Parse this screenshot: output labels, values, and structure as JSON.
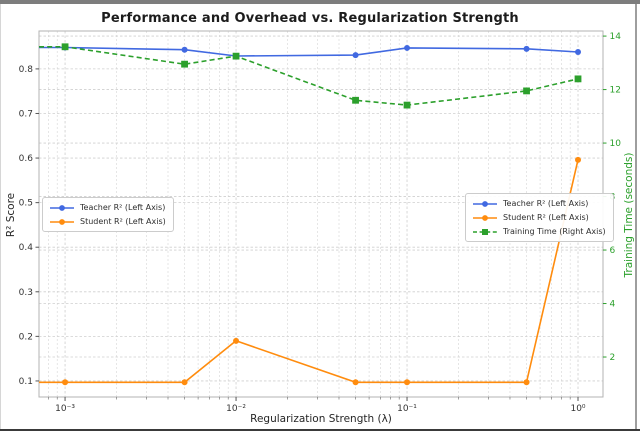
{
  "window": {
    "top_bar_color": "#7d7d7d",
    "side_border_color": "#9e9e9e",
    "bottom_border_color": "#3a3a3a"
  },
  "chart_data": {
    "type": "line",
    "title": "Performance and Overhead vs. Regularization Strength",
    "xlabel": "Regularization Strength (λ)",
    "ylabel_left": "R² Score",
    "ylabel_right": "Training Time (seconds)",
    "x_scale": "log",
    "grid": true,
    "xlim": [
      0.000704,
      1.4
    ],
    "ylim_left": [
      0.064,
      0.885
    ],
    "ylim_right": [
      0.505,
      14.19
    ],
    "x": [
      0.001,
      0.005,
      0.01,
      0.05,
      0.1,
      0.5,
      1.0
    ],
    "x_ticks": [
      {
        "value": 0.001,
        "label": "10⁻³"
      },
      {
        "value": 0.01,
        "label": "10⁻²"
      },
      {
        "value": 0.1,
        "label": "10⁻¹"
      },
      {
        "value": 1.0,
        "label": "10⁰"
      }
    ],
    "left_ticks": {
      "values": [
        0.1,
        0.2,
        0.3,
        0.4,
        0.5,
        0.6,
        0.7,
        0.8
      ],
      "labels": [
        "0.1",
        "0.2",
        "0.3",
        "0.4",
        "0.5",
        "0.6",
        "0.7",
        "0.8"
      ]
    },
    "right_ticks": {
      "values": [
        2,
        4,
        6,
        8,
        10,
        12,
        14
      ],
      "labels": [
        "2",
        "4",
        "6",
        "8",
        "10",
        "12",
        "14"
      ]
    },
    "series": [
      {
        "name": "Teacher R² (Left Axis)",
        "axis": "left",
        "color": "#4169e1",
        "style": "solid",
        "marker": "circle",
        "values": [
          0.848,
          0.843,
          0.829,
          0.831,
          0.847,
          0.845,
          0.838
        ]
      },
      {
        "name": "Student R² (Left Axis)",
        "axis": "left",
        "color": "#ff8c0e",
        "style": "solid",
        "marker": "circle",
        "values": [
          0.097,
          0.097,
          0.19,
          0.097,
          0.097,
          0.097,
          0.596
        ]
      },
      {
        "name": "Training Time (Right Axis)",
        "axis": "right",
        "color": "#2ca02c",
        "style": "dashed",
        "marker": "square",
        "values": [
          13.6,
          12.95,
          13.25,
          11.6,
          11.42,
          11.95,
          12.4
        ]
      }
    ],
    "legends": {
      "left": {
        "series_indexes": [
          0,
          1
        ]
      },
      "right": {
        "series_indexes": [
          0,
          1,
          2
        ]
      }
    },
    "colors": {
      "grid": "#cfcfcf",
      "grid_minor": "#dbdbdb",
      "spine": "#b3b3b3",
      "tick_text": "#333333",
      "right_axis_text": "#2ca02c"
    }
  }
}
